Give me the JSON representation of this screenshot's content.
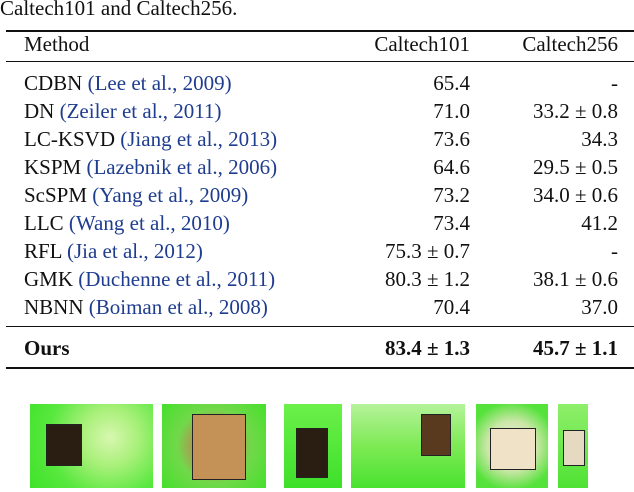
{
  "caption": "Caltech101 and Caltech256.",
  "table": {
    "headers": [
      "Method",
      "Caltech101",
      "Caltech256"
    ],
    "rows": [
      {
        "method": "CDBN",
        "cite": "(Lee et al., 2009)",
        "c101": "65.4",
        "c256": "-"
      },
      {
        "method": "DN",
        "cite": "(Zeiler et al., 2011)",
        "c101": "71.0",
        "c256": "33.2 ± 0.8"
      },
      {
        "method": "LC-KSVD",
        "cite": "(Jiang et al., 2013)",
        "c101": "73.6",
        "c256": "34.3"
      },
      {
        "method": "KSPM",
        "cite": "(Lazebnik et al., 2006)",
        "c101": "64.6",
        "c256": "29.5 ± 0.5"
      },
      {
        "method": "ScSPM",
        "cite": "(Yang et al., 2009)",
        "c101": "73.2",
        "c256": "34.0 ± 0.6"
      },
      {
        "method": "LLC",
        "cite": "(Wang et al., 2010)",
        "c101": "73.4",
        "c256": "41.2"
      },
      {
        "method": "RFL",
        "cite": "(Jia et al., 2012)",
        "c101": "75.3 ± 0.7",
        "c256": "-"
      },
      {
        "method": "GMK",
        "cite": "(Duchenne et al., 2011)",
        "c101": "80.3 ± 1.2",
        "c256": "38.1 ± 0.6"
      },
      {
        "method": "NBNN",
        "cite": "(Boiman et al., 2008)",
        "c101": "70.4",
        "c256": "37.0"
      }
    ],
    "ours": {
      "method": "Ours",
      "c101": "83.4 ± 1.3",
      "c256": "45.7 ± 1.1"
    }
  },
  "colors": {
    "highlight_green": "#4cff3c",
    "citation_blue": "#1f3d8f"
  }
}
